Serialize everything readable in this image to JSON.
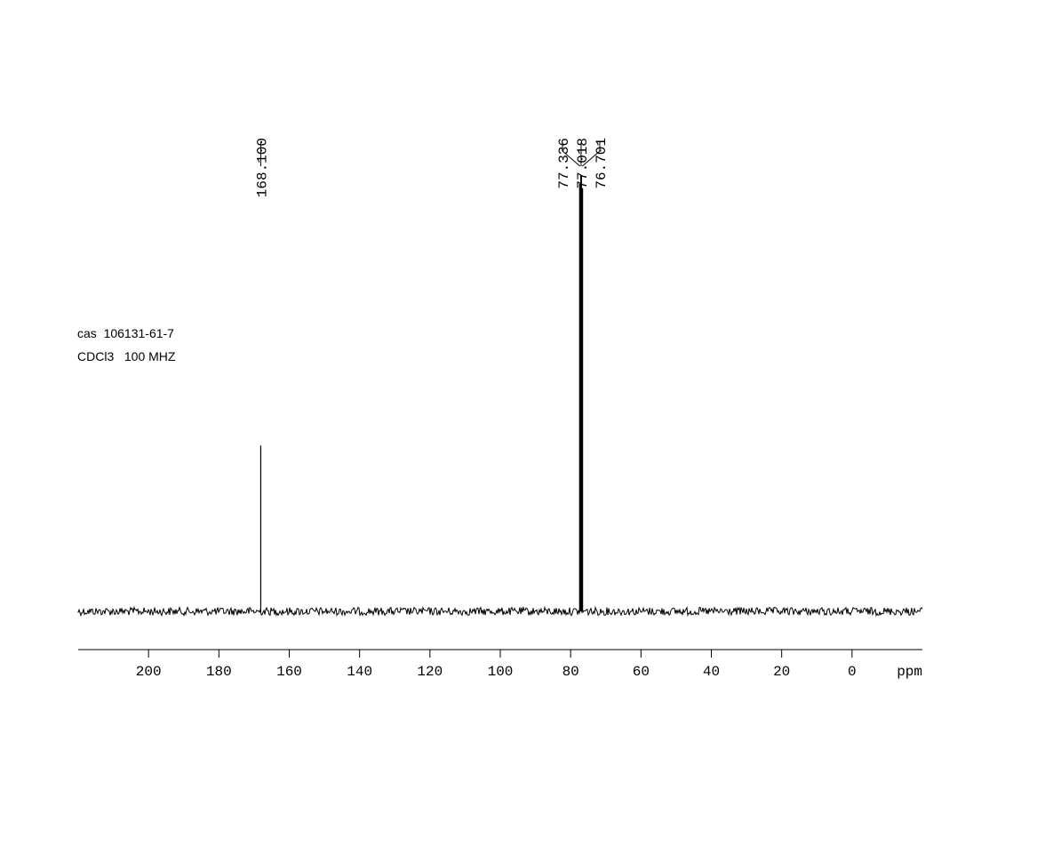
{
  "chart_data": {
    "type": "nmr-spectrum",
    "annotations": [
      "cas  106131-61-7",
      "CDCl3   100 MHZ"
    ],
    "xlabel": "ppm",
    "xlim": [
      220,
      -20
    ],
    "xticks": [
      200,
      180,
      160,
      140,
      120,
      100,
      80,
      60,
      40,
      20,
      0
    ],
    "ylim": [
      0,
      100
    ],
    "color": "#000000",
    "peaks": [
      {
        "x": 168.1,
        "label": "168.100",
        "height": 38
      },
      {
        "x": 77.336,
        "label": "77.336",
        "height": 98
      },
      {
        "x": 77.018,
        "label": "77.018",
        "height": 100
      },
      {
        "x": 76.701,
        "label": "76.701",
        "height": 97
      }
    ]
  }
}
